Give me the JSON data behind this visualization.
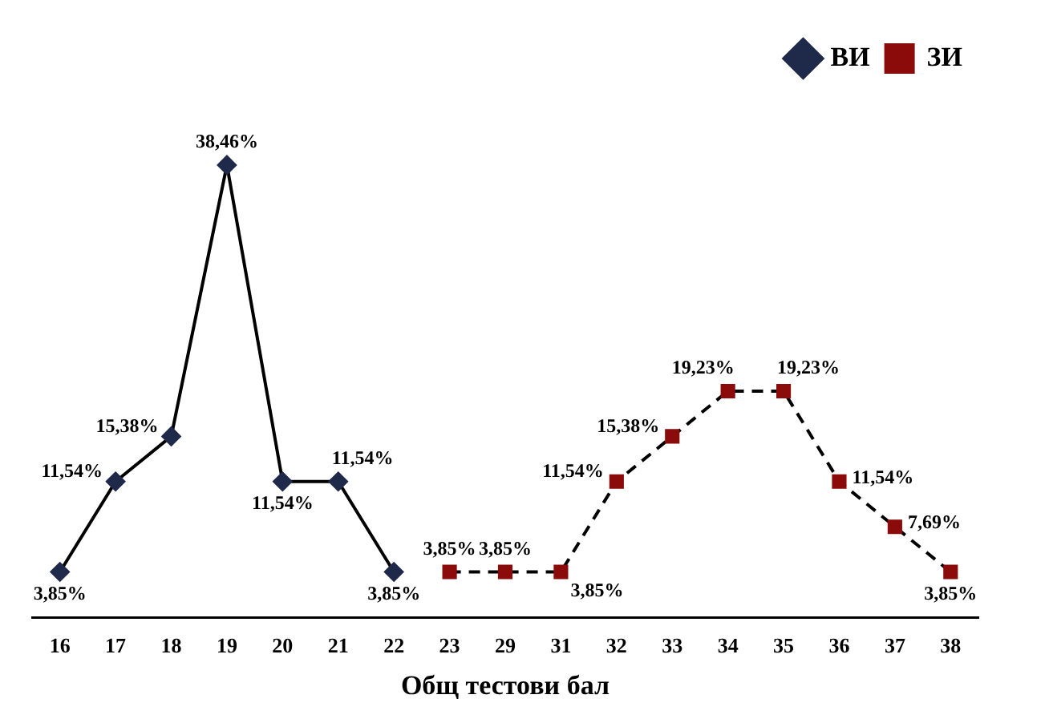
{
  "chart_data": {
    "type": "line",
    "xlabel": "Общ тестови бал",
    "categories": [
      "16",
      "17",
      "18",
      "19",
      "20",
      "21",
      "22",
      "23",
      "29",
      "31",
      "32",
      "33",
      "34",
      "35",
      "36",
      "37",
      "38"
    ],
    "series": [
      {
        "name": "ВИ",
        "color": "#1f2a4a",
        "marker": "diamond",
        "line_style": "solid",
        "values": [
          3.85,
          11.54,
          15.38,
          38.46,
          11.54,
          11.54,
          3.85,
          null,
          null,
          null,
          null,
          null,
          null,
          null,
          null,
          null,
          null
        ],
        "value_labels": [
          "3,85%",
          "11,54%",
          "15,38%",
          "38,46%",
          "11,54%",
          "11,54%",
          "3,85%",
          null,
          null,
          null,
          null,
          null,
          null,
          null,
          null,
          null,
          null
        ]
      },
      {
        "name": "ЗИ",
        "color": "#8b0a0a",
        "marker": "square",
        "line_style": "dashed",
        "values": [
          null,
          null,
          null,
          null,
          null,
          null,
          null,
          3.85,
          3.85,
          3.85,
          11.54,
          15.38,
          19.23,
          19.23,
          11.54,
          7.69,
          3.85
        ],
        "value_labels": [
          null,
          null,
          null,
          null,
          null,
          null,
          null,
          "3,85%",
          "3,85%",
          "3,85%",
          "11,54%",
          "15,38%",
          "19,23%",
          "19,23%",
          "11,54%",
          "7,69%",
          "3,85%"
        ]
      }
    ],
    "legend": "top right",
    "grid": false
  }
}
